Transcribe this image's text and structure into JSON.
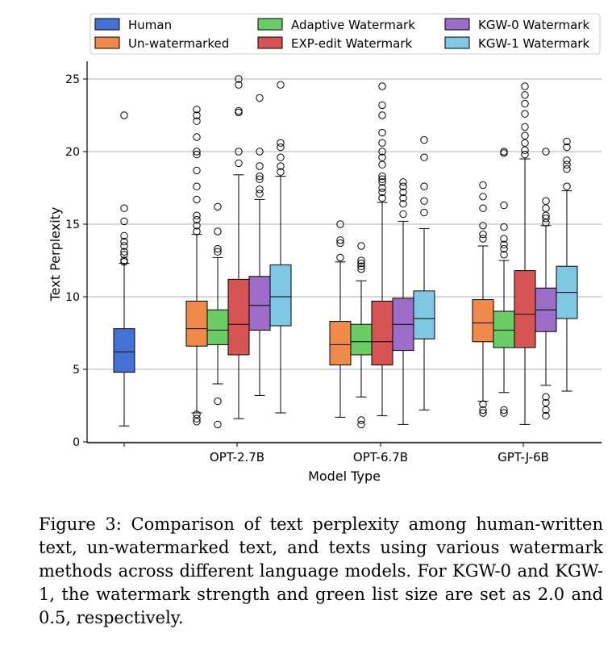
{
  "chart_data": {
    "type": "box",
    "xlabel": "Model Type",
    "ylabel": "Text Perplexity",
    "ylim": [
      -0.3,
      25.6
    ],
    "yticks": [
      0,
      5,
      10,
      15,
      20,
      25
    ],
    "categories": [
      "",
      "OPT-2.7B",
      "OPT-6.7B",
      "GPT-J-6B"
    ],
    "grid": "horizontal",
    "legend_position": "top",
    "series": [
      {
        "name": "Human",
        "color": "#4472d4",
        "boxes": [
          {
            "category": "",
            "whisker_low": 1.1,
            "q1": 4.8,
            "median": 6.2,
            "q3": 7.8,
            "whisker_high": 12.3,
            "outliers": [
              12.4,
              12.5,
              12.9,
              13.1,
              13.5,
              13.8,
              14.2,
              15.2,
              16.1,
              22.5
            ]
          }
        ]
      },
      {
        "name": "Un-watermarked",
        "color": "#ef8a4a",
        "boxes": [
          {
            "category": "OPT-2.7B",
            "whisker_low": 2.0,
            "q1": 6.6,
            "median": 7.8,
            "q3": 9.7,
            "whisker_high": 14.3,
            "outliers": [
              1.4,
              1.6,
              1.9,
              14.5,
              14.9,
              15.3,
              15.6,
              16.7,
              17.6,
              18.7,
              19.8,
              20.0,
              21.0,
              22.1,
              22.5,
              22.9
            ]
          },
          {
            "category": "OPT-6.7B",
            "whisker_low": 1.7,
            "q1": 5.3,
            "median": 6.7,
            "q3": 8.3,
            "whisker_high": 12.4,
            "outliers": [
              12.7,
              13.7,
              13.9,
              15.0
            ]
          },
          {
            "category": "GPT-J-6B",
            "whisker_low": 2.8,
            "q1": 6.9,
            "median": 8.2,
            "q3": 9.8,
            "whisker_high": 13.5,
            "outliers": [
              2.0,
              2.2,
              2.6,
              14.0,
              14.3,
              14.9,
              16.1,
              16.9,
              17.7
            ]
          }
        ]
      },
      {
        "name": "Adaptive Watermark",
        "color": "#6acc64",
        "boxes": [
          {
            "category": "OPT-2.7B",
            "whisker_low": 4.0,
            "q1": 6.7,
            "median": 7.7,
            "q3": 9.1,
            "whisker_high": 12.7,
            "outliers": [
              1.2,
              2.8,
              13.1,
              13.3,
              14.5,
              16.2
            ]
          },
          {
            "category": "OPT-6.7B",
            "whisker_low": 3.1,
            "q1": 6.0,
            "median": 6.9,
            "q3": 8.1,
            "whisker_high": 11.1,
            "outliers": [
              1.2,
              1.5,
              11.9,
              12.1,
              12.3,
              12.5,
              13.5
            ]
          },
          {
            "category": "GPT-J-6B",
            "whisker_low": 3.4,
            "q1": 6.5,
            "median": 7.7,
            "q3": 9.0,
            "whisker_high": 12.5,
            "outliers": [
              2.0,
              2.2,
              12.9,
              13.3,
              13.6,
              14.0,
              14.8,
              16.3,
              19.9,
              20.0
            ]
          }
        ]
      },
      {
        "name": "EXP-edit Watermark",
        "color": "#d65454",
        "boxes": [
          {
            "category": "OPT-2.7B",
            "whisker_low": 1.6,
            "q1": 6.0,
            "median": 8.1,
            "q3": 11.2,
            "whisker_high": 18.4,
            "outliers": [
              19.2,
              20.0,
              22.7,
              22.8,
              24.6,
              25.0
            ]
          },
          {
            "category": "OPT-6.7B",
            "whisker_low": 1.8,
            "q1": 5.3,
            "median": 6.9,
            "q3": 9.7,
            "whisker_high": 16.5,
            "outliers": [
              16.8,
              17.2,
              17.5,
              17.9,
              18.1,
              18.3,
              19.1,
              19.6,
              20.0,
              20.6,
              21.3,
              22.5,
              23.2,
              24.5
            ]
          },
          {
            "category": "GPT-J-6B",
            "whisker_low": 1.2,
            "q1": 6.5,
            "median": 8.8,
            "q3": 11.8,
            "whisker_high": 19.5,
            "outliers": [
              19.8,
              20.1,
              20.6,
              21.1,
              21.7,
              22.6,
              23.3,
              23.9,
              24.5
            ]
          }
        ]
      },
      {
        "name": "KGW-0 Watermark",
        "color": "#9b6dc6",
        "boxes": [
          {
            "category": "OPT-2.7B",
            "whisker_low": 3.2,
            "q1": 7.7,
            "median": 9.4,
            "q3": 11.4,
            "whisker_high": 16.7,
            "outliers": [
              17.1,
              17.4,
              18.1,
              18.3,
              19.0,
              20.0,
              23.7
            ]
          },
          {
            "category": "OPT-6.7B",
            "whisker_low": 1.2,
            "q1": 6.3,
            "median": 8.1,
            "q3": 9.9,
            "whisker_high": 15.2,
            "outliers": [
              15.7,
              16.4,
              16.8,
              17.2,
              17.6,
              17.9
            ]
          },
          {
            "category": "GPT-J-6B",
            "whisker_low": 3.9,
            "q1": 7.6,
            "median": 9.1,
            "q3": 10.6,
            "whisker_high": 14.9,
            "outliers": [
              1.8,
              2.2,
              2.7,
              3.1,
              15.1,
              15.4,
              15.6,
              16.1,
              16.6,
              20.0
            ]
          }
        ]
      },
      {
        "name": "KGW-1 Watermark",
        "color": "#7ec8e3",
        "boxes": [
          {
            "category": "OPT-2.7B",
            "whisker_low": 2.0,
            "q1": 8.0,
            "median": 10.0,
            "q3": 12.2,
            "whisker_high": 18.3,
            "outliers": [
              18.6,
              19.0,
              19.6,
              20.3,
              20.6,
              24.6
            ]
          },
          {
            "category": "OPT-6.7B",
            "whisker_low": 2.2,
            "q1": 7.1,
            "median": 8.5,
            "q3": 10.4,
            "whisker_high": 14.7,
            "outliers": [
              15.8,
              16.6,
              17.6,
              19.6,
              20.8
            ]
          },
          {
            "category": "GPT-J-6B",
            "whisker_low": 3.5,
            "q1": 8.5,
            "median": 10.3,
            "q3": 12.1,
            "whisker_high": 17.3,
            "outliers": [
              17.6,
              18.8,
              19.1,
              19.4,
              20.3,
              20.7
            ]
          }
        ]
      }
    ]
  },
  "caption": "Figure 3: Comparison of text perplexity among human-written text, un-watermarked text, and texts using various watermark methods across different language models. For KGW-0 and KGW-1, the watermark strength and green list size are set as 2.0 and 0.5, respectively."
}
